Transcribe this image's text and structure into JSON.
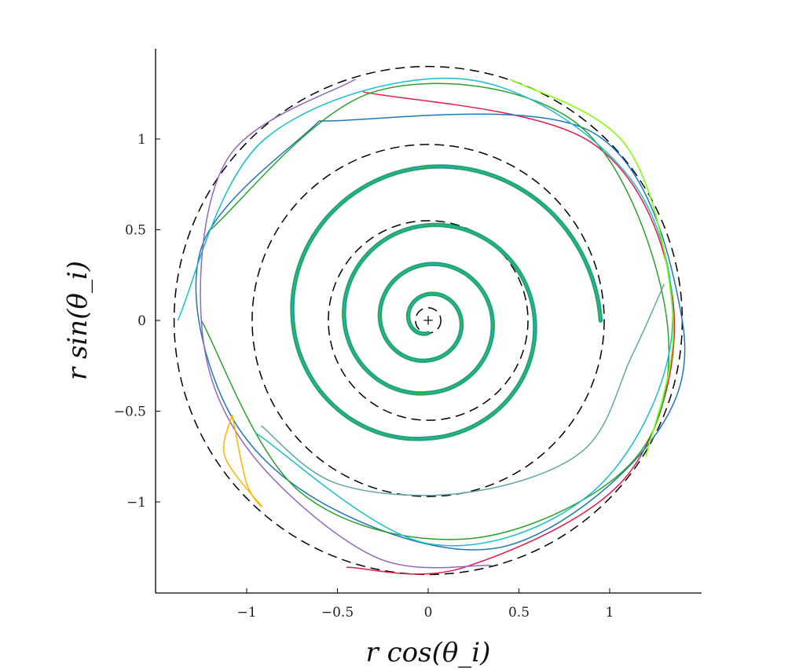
{
  "chart_data": {
    "type": "line",
    "title": "",
    "xlabel": "r cos(θ_i)",
    "ylabel": "r sin(θ_i)",
    "xlim": [
      -1.5,
      1.5
    ],
    "ylim": [
      -1.5,
      1.5
    ],
    "x_ticks": [
      -1,
      -0.5,
      0,
      0.5,
      1
    ],
    "y_ticks": [
      -1,
      -0.5,
      0,
      0.5,
      1
    ],
    "x_tick_labels": [
      "−1",
      "−0.5",
      "0",
      "0.5",
      "1"
    ],
    "y_tick_labels": [
      "−1",
      "−0.5",
      "0",
      "0.5",
      "1"
    ],
    "grid": false,
    "legend": "none",
    "center_marker": {
      "x": 0,
      "y": 0,
      "symbol": "+"
    },
    "reference_circles": [
      {
        "radius": 0.07,
        "style": "dashed",
        "color": "#000000"
      },
      {
        "radius": 0.55,
        "style": "dashed",
        "color": "#000000"
      },
      {
        "radius": 0.97,
        "style": "dashed",
        "color": "#000000"
      },
      {
        "radius": 1.4,
        "style": "dashed",
        "color": "#000000"
      }
    ],
    "inner_spiral": {
      "colors": [
        "#1f9e89",
        "#2ca02c",
        "#17becf"
      ],
      "points": [
        {
          "angle_deg": 0,
          "r": 0.07
        },
        {
          "angle_deg": 360,
          "r": 0.22
        },
        {
          "angle_deg": 720,
          "r": 0.4
        },
        {
          "angle_deg": 1080,
          "r": 0.65
        },
        {
          "angle_deg": 1220,
          "r": 0.8
        },
        {
          "angle_deg": 1350,
          "r": 0.95
        }
      ]
    },
    "outer_trajectories": [
      {
        "color": "#e41a4a",
        "points": [
          [
            -0.36,
            1.26
          ],
          [
            0.9,
            0.98
          ],
          [
            1.35,
            0.1
          ],
          [
            1.1,
            -0.85
          ],
          [
            0.2,
            -1.36
          ],
          [
            -0.45,
            -1.36
          ]
        ]
      },
      {
        "color": "#1f77b4",
        "points": [
          [
            -0.6,
            1.1
          ],
          [
            0.9,
            1.04
          ],
          [
            1.4,
            0.0
          ],
          [
            1.2,
            -0.7
          ],
          [
            0.4,
            -1.25
          ],
          [
            -0.5,
            -1.05
          ],
          [
            -1.1,
            -0.5
          ],
          [
            -1.25,
            0.4
          ],
          [
            -0.6,
            1.1
          ]
        ]
      },
      {
        "color": "#2ca02c",
        "points": [
          [
            -1.2,
            0.5
          ],
          [
            -0.3,
            1.26
          ],
          [
            0.8,
            1.1
          ],
          [
            1.3,
            0.1
          ],
          [
            1.15,
            -0.75
          ],
          [
            0.25,
            -1.2
          ],
          [
            -0.7,
            -0.95
          ],
          [
            -1.25,
            0.0
          ]
        ]
      },
      {
        "color": "#17becf",
        "points": [
          [
            -1.38,
            0.0
          ],
          [
            -0.9,
            1.0
          ],
          [
            0.2,
            1.33
          ],
          [
            1.1,
            0.8
          ],
          [
            1.34,
            -0.1
          ],
          [
            0.9,
            -0.95
          ],
          [
            0.0,
            -1.23
          ],
          [
            -0.95,
            -0.62
          ]
        ]
      },
      {
        "color": "#9467bd",
        "points": [
          [
            -0.4,
            1.33
          ],
          [
            -1.1,
            0.9
          ],
          [
            -1.25,
            0.0
          ],
          [
            -1.0,
            -0.7
          ],
          [
            -0.3,
            -1.3
          ],
          [
            0.35,
            -1.35
          ]
        ]
      },
      {
        "color": "#7fff00",
        "points": [
          [
            0.45,
            1.33
          ],
          [
            1.1,
            0.95
          ],
          [
            1.35,
            0.0
          ],
          [
            1.2,
            -0.75
          ]
        ]
      },
      {
        "color": "#ffb300",
        "points": [
          [
            -1.08,
            -0.52
          ],
          [
            -1.12,
            -0.75
          ],
          [
            -0.92,
            -1.02
          ],
          [
            -1.0,
            -0.9
          ],
          [
            -1.08,
            -0.52
          ]
        ]
      },
      {
        "color": "#5fa8a0",
        "points": [
          [
            -0.92,
            -0.58
          ],
          [
            -0.5,
            -0.9
          ],
          [
            0.2,
            -0.95
          ],
          [
            0.85,
            -0.72
          ],
          [
            1.12,
            -0.2
          ],
          [
            1.3,
            0.2
          ]
        ]
      }
    ]
  }
}
